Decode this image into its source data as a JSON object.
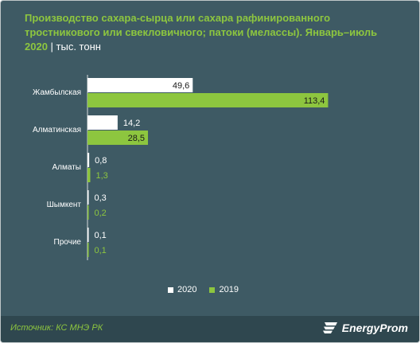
{
  "title": {
    "main": "Производство сахара-сырца или сахара рафинированного тростникового или свекловичного; патоки (мелассы). Январь–июль 2020",
    "unit": "| тыс. тонн"
  },
  "chart_data": {
    "type": "bar",
    "orientation": "horizontal",
    "categories": [
      "Жамбылская",
      "Алматинская",
      "Алматы",
      "Шымкент",
      "Прочие"
    ],
    "series": [
      {
        "name": "2020",
        "values": [
          49.6,
          14.2,
          0.8,
          0.3,
          0.1
        ],
        "labels": [
          "49,6",
          "14,2",
          "0,8",
          "0,3",
          "0,1"
        ],
        "color": "#ffffff"
      },
      {
        "name": "2019",
        "values": [
          113.4,
          28.5,
          1.3,
          0.2,
          0.1
        ],
        "labels": [
          "113,4",
          "28,5",
          "1,3",
          "0,2",
          "0,1"
        ],
        "color": "#8dc63f"
      }
    ],
    "xlim": [
      0,
      120
    ],
    "grid": false,
    "legend_position": "bottom"
  },
  "legend": {
    "label_2020": "2020",
    "label_2019": "2019"
  },
  "footer": {
    "source": "Источник: КС МНЭ РК",
    "brand": "EnergyProm"
  },
  "colors": {
    "background": "#3e5a64",
    "accent": "#8dc63f",
    "footer": "#2f474f"
  }
}
